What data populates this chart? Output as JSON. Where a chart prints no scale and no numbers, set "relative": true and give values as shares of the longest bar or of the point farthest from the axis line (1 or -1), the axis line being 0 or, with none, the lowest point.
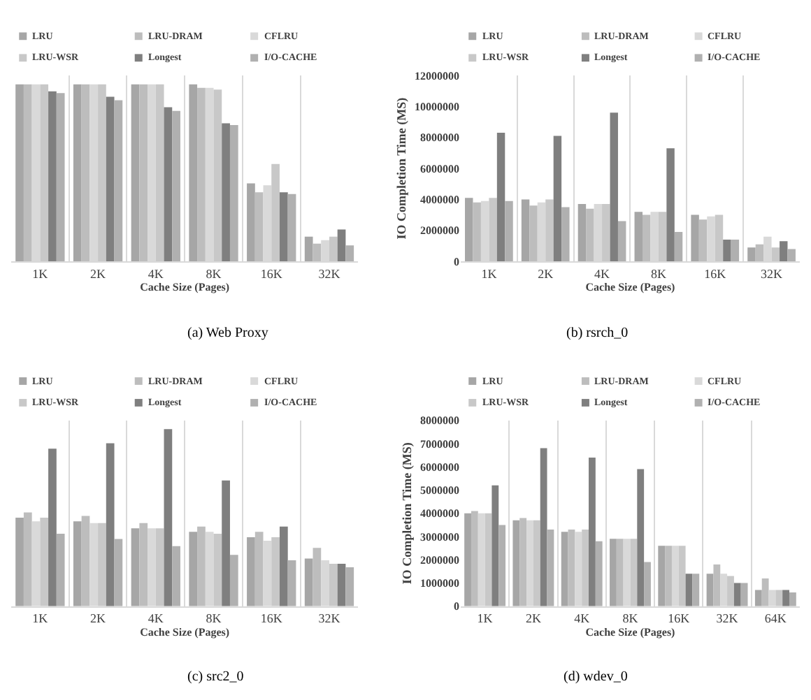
{
  "chart_data": [
    {
      "type": "bar",
      "title": "(a) Web Proxy",
      "xlabel": "Cache Size (Pages)",
      "relative": true,
      "grid": "x",
      "legend": "top",
      "categories": [
        "1K",
        "2K",
        "4K",
        "8K",
        "16K",
        "32K"
      ],
      "series": [
        {
          "name": "LRU",
          "color": "#a6a6a6",
          "values": [
            1.0,
            1.0,
            1.0,
            1.0,
            0.44,
            0.14
          ]
        },
        {
          "name": "LRU-DRAM",
          "color": "#bdbdbd",
          "values": [
            1.0,
            1.0,
            1.0,
            0.98,
            0.39,
            0.1
          ]
        },
        {
          "name": "CFLRU",
          "color": "#d9d9d9",
          "values": [
            1.0,
            1.0,
            1.0,
            0.98,
            0.43,
            0.12
          ]
        },
        {
          "name": "LRU-WSR",
          "color": "#c8c8c8",
          "values": [
            1.0,
            1.0,
            1.0,
            0.97,
            0.55,
            0.14
          ]
        },
        {
          "name": "Longest",
          "color": "#7f7f7f",
          "values": [
            0.96,
            0.93,
            0.87,
            0.78,
            0.39,
            0.18
          ]
        },
        {
          "name": "I/O-CACHE",
          "color": "#b0b0b0",
          "values": [
            0.95,
            0.91,
            0.85,
            0.77,
            0.38,
            0.09
          ]
        }
      ]
    },
    {
      "type": "bar",
      "title": "(b) rsrch_0",
      "xlabel": "Cache Size (Pages)",
      "ylabel": "IO Completion Time (MS)",
      "grid": "x",
      "legend": "top",
      "categories": [
        "1K",
        "2K",
        "4K",
        "8K",
        "16K",
        "32K"
      ],
      "ylim": [
        0,
        12000000
      ],
      "yticks": [
        0,
        2000000,
        4000000,
        6000000,
        8000000,
        10000000,
        12000000
      ],
      "series": [
        {
          "name": "LRU",
          "color": "#a6a6a6",
          "values": [
            4100000,
            4000000,
            3700000,
            3200000,
            3000000,
            900000
          ]
        },
        {
          "name": "LRU-DRAM",
          "color": "#bdbdbd",
          "values": [
            3800000,
            3600000,
            3400000,
            3000000,
            2700000,
            1100000
          ]
        },
        {
          "name": "CFLRU",
          "color": "#d9d9d9",
          "values": [
            3900000,
            3800000,
            3700000,
            3200000,
            2900000,
            1600000
          ]
        },
        {
          "name": "LRU-WSR",
          "color": "#c8c8c8",
          "values": [
            4100000,
            4000000,
            3700000,
            3200000,
            3000000,
            900000
          ]
        },
        {
          "name": "Longest",
          "color": "#7f7f7f",
          "values": [
            8300000,
            8100000,
            9600000,
            7300000,
            1400000,
            1300000
          ]
        },
        {
          "name": "I/O-CACHE",
          "color": "#b0b0b0",
          "values": [
            3900000,
            3500000,
            2600000,
            1900000,
            1400000,
            800000
          ]
        }
      ]
    },
    {
      "type": "bar",
      "title": "(c) src2_0",
      "xlabel": "Cache Size (Pages)",
      "relative": true,
      "grid": "x",
      "legend": "top",
      "categories": [
        "1K",
        "2K",
        "4K",
        "8K",
        "16K",
        "32K"
      ],
      "series": [
        {
          "name": "LRU",
          "color": "#a6a6a6",
          "values": [
            0.5,
            0.48,
            0.44,
            0.42,
            0.39,
            0.27
          ]
        },
        {
          "name": "LRU-DRAM",
          "color": "#bdbdbd",
          "values": [
            0.53,
            0.51,
            0.47,
            0.45,
            0.42,
            0.33
          ]
        },
        {
          "name": "CFLRU",
          "color": "#d9d9d9",
          "values": [
            0.48,
            0.47,
            0.44,
            0.42,
            0.37,
            0.26
          ]
        },
        {
          "name": "LRU-WSR",
          "color": "#c8c8c8",
          "values": [
            0.5,
            0.47,
            0.44,
            0.41,
            0.39,
            0.24
          ]
        },
        {
          "name": "Longest",
          "color": "#7f7f7f",
          "values": [
            0.89,
            0.92,
            1.0,
            0.71,
            0.45,
            0.24
          ]
        },
        {
          "name": "I/O-CACHE",
          "color": "#b0b0b0",
          "values": [
            0.41,
            0.38,
            0.34,
            0.29,
            0.26,
            0.22
          ]
        }
      ]
    },
    {
      "type": "bar",
      "title": "(d) wdev_0",
      "xlabel": "Cache Size (Pages)",
      "ylabel": "IO Completion Time (MS)",
      "grid": "x",
      "legend": "top",
      "categories": [
        "1K",
        "2K",
        "4K",
        "8K",
        "16K",
        "32K",
        "64K"
      ],
      "ylim": [
        0,
        8000000
      ],
      "yticks": [
        0,
        1000000,
        2000000,
        3000000,
        4000000,
        5000000,
        6000000,
        7000000,
        8000000
      ],
      "series": [
        {
          "name": "LRU",
          "color": "#a6a6a6",
          "values": [
            4000000,
            3700000,
            3200000,
            2900000,
            2600000,
            1400000,
            700000
          ]
        },
        {
          "name": "LRU-DRAM",
          "color": "#bdbdbd",
          "values": [
            4100000,
            3800000,
            3300000,
            2900000,
            2600000,
            1800000,
            1200000
          ]
        },
        {
          "name": "CFLRU",
          "color": "#d9d9d9",
          "values": [
            4000000,
            3700000,
            3200000,
            2900000,
            2600000,
            1400000,
            700000
          ]
        },
        {
          "name": "LRU-WSR",
          "color": "#c8c8c8",
          "values": [
            4000000,
            3700000,
            3300000,
            2900000,
            2600000,
            1300000,
            700000
          ]
        },
        {
          "name": "Longest",
          "color": "#7f7f7f",
          "values": [
            5200000,
            6800000,
            6400000,
            5900000,
            1400000,
            1000000,
            700000
          ]
        },
        {
          "name": "I/O-CACHE",
          "color": "#b0b0b0",
          "values": [
            3500000,
            3300000,
            2800000,
            1900000,
            1400000,
            1000000,
            600000
          ]
        }
      ]
    }
  ]
}
